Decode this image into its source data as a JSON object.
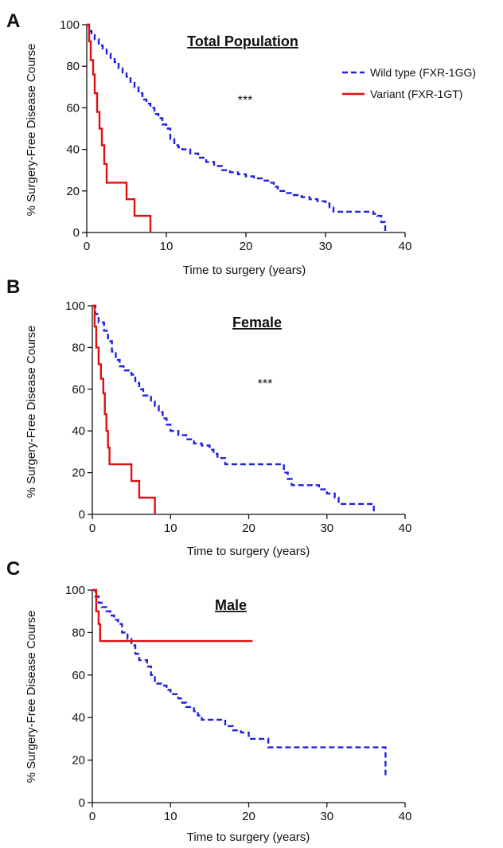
{
  "colors": {
    "wild_type": "#2020e0",
    "variant": "#e01010",
    "axis": "#111111"
  },
  "chart_data": [
    {
      "type": "line",
      "panel": "A",
      "title": "Total Population",
      "annotation": "***",
      "xlabel": "Time to surgery (years)",
      "ylabel": "% Surgery-Free Disease Course",
      "xlim": [
        0,
        40
      ],
      "ylim": [
        0,
        100
      ],
      "xticks": [
        0,
        10,
        20,
        30,
        40
      ],
      "yticks": [
        0,
        20,
        40,
        60,
        80,
        100
      ],
      "grid": false,
      "legend": {
        "placement": "top-right"
      },
      "series": [
        {
          "name": "Wild type (FXR-1GG)",
          "style": "dashed",
          "color": "#2020e0",
          "points": [
            [
              0,
              100
            ],
            [
              0.3,
              97
            ],
            [
              0.6,
              95
            ],
            [
              1,
              93
            ],
            [
              1.5,
              90
            ],
            [
              2,
              88
            ],
            [
              2.5,
              86
            ],
            [
              3,
              84
            ],
            [
              3.5,
              82
            ],
            [
              4,
              79
            ],
            [
              4.5,
              77
            ],
            [
              5,
              75
            ],
            [
              5.5,
              72
            ],
            [
              6,
              70
            ],
            [
              6.5,
              67
            ],
            [
              7,
              64
            ],
            [
              7.5,
              62
            ],
            [
              8,
              60
            ],
            [
              8.5,
              57
            ],
            [
              9,
              55
            ],
            [
              9.5,
              52
            ],
            [
              10,
              50
            ],
            [
              10.5,
              45
            ],
            [
              11,
              42
            ],
            [
              11.5,
              41
            ],
            [
              12,
              40
            ],
            [
              13,
              38
            ],
            [
              14,
              36
            ],
            [
              15,
              34
            ],
            [
              16,
              32
            ],
            [
              17,
              30
            ],
            [
              18,
              29
            ],
            [
              19,
              28
            ],
            [
              20,
              27
            ],
            [
              21,
              26
            ],
            [
              22,
              25
            ],
            [
              23,
              24
            ],
            [
              23.5,
              22
            ],
            [
              24,
              20
            ],
            [
              25,
              19
            ],
            [
              26,
              18
            ],
            [
              27,
              17
            ],
            [
              28,
              16
            ],
            [
              29,
              15
            ],
            [
              30,
              14
            ],
            [
              30.5,
              12
            ],
            [
              31,
              10
            ],
            [
              33,
              10
            ],
            [
              35,
              10
            ],
            [
              36,
              9
            ],
            [
              36.5,
              8
            ],
            [
              37,
              5
            ],
            [
              37.5,
              5
            ],
            [
              37.5,
              0
            ]
          ]
        },
        {
          "name": "Variant (FXR-1GT)",
          "style": "solid",
          "color": "#e01010",
          "points": [
            [
              0,
              100
            ],
            [
              0.3,
              92
            ],
            [
              0.5,
              83
            ],
            [
              0.8,
              76
            ],
            [
              1,
              67
            ],
            [
              1.3,
              58
            ],
            [
              1.6,
              50
            ],
            [
              1.9,
              42
            ],
            [
              2.2,
              33
            ],
            [
              2.5,
              24
            ],
            [
              5,
              24
            ],
            [
              5,
              16
            ],
            [
              6,
              16
            ],
            [
              6,
              8
            ],
            [
              8,
              8
            ],
            [
              8,
              0
            ]
          ]
        }
      ]
    },
    {
      "type": "line",
      "panel": "B",
      "title": "Female",
      "annotation": "***",
      "xlabel": "Time to surgery (years)",
      "ylabel": "% Surgery-Free Disease Course",
      "xlim": [
        0,
        40
      ],
      "ylim": [
        0,
        100
      ],
      "xticks": [
        0,
        10,
        20,
        30,
        40
      ],
      "yticks": [
        0,
        20,
        40,
        60,
        80,
        100
      ],
      "grid": false,
      "series": [
        {
          "name": "Wild type (FXR-1GG)",
          "style": "dashed",
          "color": "#2020e0",
          "points": [
            [
              0,
              100
            ],
            [
              0.4,
              96
            ],
            [
              0.8,
              92
            ],
            [
              1.5,
              88
            ],
            [
              2,
              83
            ],
            [
              2.5,
              78
            ],
            [
              3,
              74
            ],
            [
              3.5,
              71
            ],
            [
              4,
              69
            ],
            [
              5,
              67
            ],
            [
              5.5,
              63
            ],
            [
              6,
              60
            ],
            [
              6.5,
              57
            ],
            [
              7.5,
              54
            ],
            [
              8,
              52
            ],
            [
              8.5,
              49
            ],
            [
              9,
              46
            ],
            [
              9.5,
              43
            ],
            [
              10,
              40
            ],
            [
              11,
              38
            ],
            [
              12,
              36
            ],
            [
              13,
              34
            ],
            [
              14,
              33
            ],
            [
              15,
              31
            ],
            [
              15.5,
              29
            ],
            [
              16,
              27
            ],
            [
              17,
              25
            ],
            [
              17,
              24
            ],
            [
              20,
              24
            ],
            [
              22,
              24
            ],
            [
              24,
              24
            ],
            [
              24.5,
              20
            ],
            [
              25,
              17
            ],
            [
              25.5,
              14
            ],
            [
              27,
              14
            ],
            [
              28.5,
              14
            ],
            [
              29,
              12
            ],
            [
              30,
              10
            ],
            [
              31,
              8
            ],
            [
              31.5,
              5
            ],
            [
              34,
              5
            ],
            [
              36,
              4
            ],
            [
              36,
              0
            ]
          ]
        },
        {
          "name": "Variant (FXR-1GT)",
          "style": "solid",
          "color": "#e01010",
          "points": [
            [
              0,
              100
            ],
            [
              0.3,
              90
            ],
            [
              0.5,
              80
            ],
            [
              0.8,
              72
            ],
            [
              1.1,
              65
            ],
            [
              1.4,
              58
            ],
            [
              1.6,
              48
            ],
            [
              1.8,
              40
            ],
            [
              2,
              32
            ],
            [
              2.2,
              24
            ],
            [
              5,
              24
            ],
            [
              5,
              16
            ],
            [
              6,
              16
            ],
            [
              6,
              8
            ],
            [
              8,
              8
            ],
            [
              8,
              0
            ]
          ]
        }
      ]
    },
    {
      "type": "line",
      "panel": "C",
      "title": "Male",
      "annotation": "",
      "xlabel": "Time to surgery (years)",
      "ylabel": "% Surgery-Free Disease Course",
      "xlim": [
        0,
        40
      ],
      "ylim": [
        0,
        100
      ],
      "xticks": [
        0,
        10,
        20,
        30,
        40
      ],
      "yticks": [
        0,
        20,
        40,
        60,
        80,
        100
      ],
      "grid": false,
      "series": [
        {
          "name": "Wild type (FXR-1GG)",
          "style": "dashed",
          "color": "#2020e0",
          "points": [
            [
              0,
              100
            ],
            [
              0.4,
              97
            ],
            [
              0.8,
              94
            ],
            [
              1.2,
              92
            ],
            [
              1.8,
              90
            ],
            [
              2.3,
              88
            ],
            [
              2.8,
              86
            ],
            [
              3.3,
              84
            ],
            [
              3.8,
              80
            ],
            [
              4.5,
              77
            ],
            [
              5,
              74
            ],
            [
              5.5,
              70
            ],
            [
              6,
              67
            ],
            [
              7,
              64
            ],
            [
              7.5,
              60
            ],
            [
              8,
              56
            ],
            [
              9,
              55
            ],
            [
              9.5,
              53
            ],
            [
              10,
              51
            ],
            [
              11,
              49
            ],
            [
              11.5,
              47
            ],
            [
              12,
              45
            ],
            [
              13,
              43
            ],
            [
              13.5,
              41
            ],
            [
              14,
              39
            ],
            [
              15,
              39
            ],
            [
              16,
              39
            ],
            [
              17,
              36
            ],
            [
              18,
              34
            ],
            [
              19,
              33
            ],
            [
              20,
              30
            ],
            [
              22,
              30
            ],
            [
              22.5,
              26
            ],
            [
              25,
              26
            ],
            [
              30,
              26
            ],
            [
              35,
              26
            ],
            [
              37.5,
              26
            ],
            [
              37.5,
              12
            ]
          ]
        },
        {
          "name": "Variant (FXR-1GT)",
          "style": "solid",
          "color": "#e01010",
          "points": [
            [
              0,
              100
            ],
            [
              0.5,
              90
            ],
            [
              0.8,
              84
            ],
            [
              1,
              76
            ],
            [
              20.5,
              76
            ]
          ]
        }
      ]
    }
  ]
}
